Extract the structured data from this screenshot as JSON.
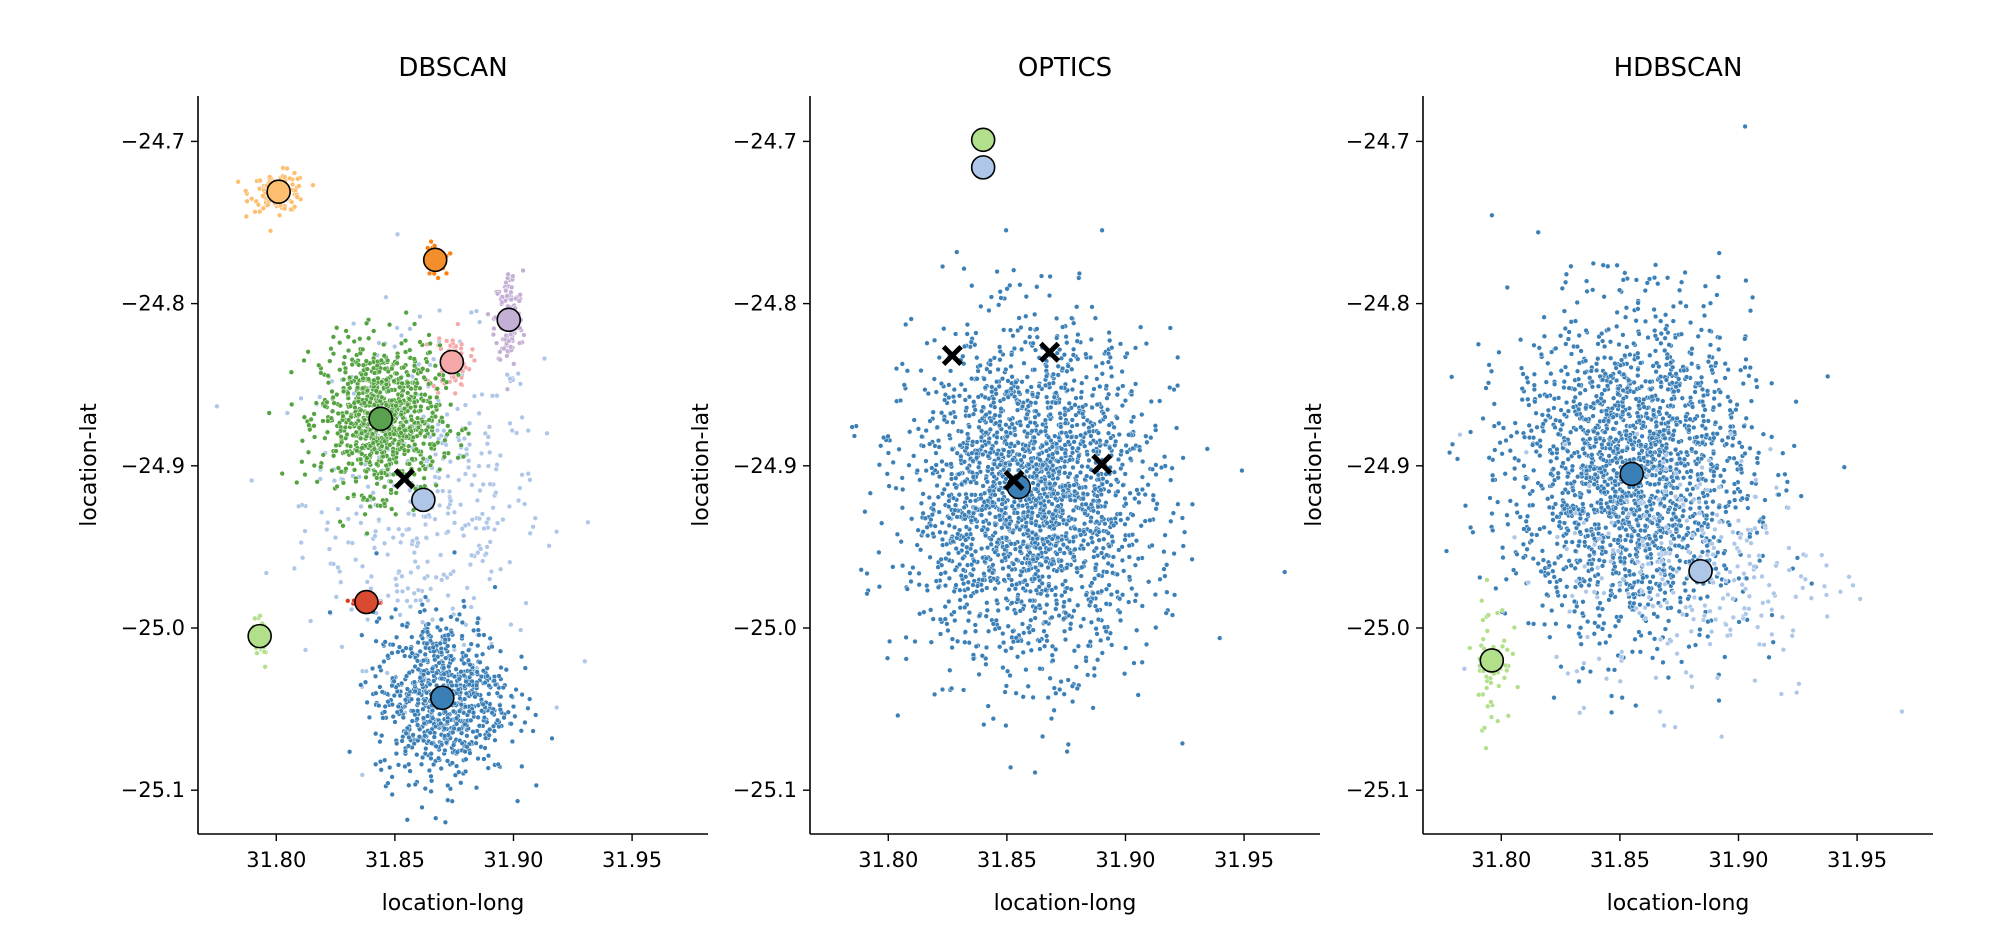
{
  "chart_data": [
    {
      "type": "scatter",
      "title": "DBSCAN",
      "xlabel": "location-long",
      "ylabel": "location-lat",
      "xlim": [
        31.767,
        31.982
      ],
      "ylim": [
        -25.127,
        -24.672
      ],
      "xticks": [
        31.8,
        31.85,
        31.9,
        31.95
      ],
      "xtick_labels": [
        "31.80",
        "31.85",
        "31.90",
        "31.95"
      ],
      "yticks": [
        -24.7,
        -24.8,
        -24.9,
        -25.0,
        -25.1
      ],
      "ytick_labels": [
        "−24.7",
        "−24.8",
        "−24.9",
        "−25.0",
        "−25.1"
      ],
      "grid": false,
      "legend": "none",
      "clusters": [
        {
          "color": "#aec7e8",
          "center": [
            31.862,
            -24.921
          ],
          "spread": [
            0.05,
            0.1
          ],
          "n": 420
        },
        {
          "color": "#fdbf6f",
          "center": [
            31.801,
            -24.731
          ],
          "spread": [
            0.012,
            0.012
          ],
          "n": 110
        },
        {
          "color": "#ff7f0e",
          "center": [
            31.867,
            -24.773
          ],
          "spread": [
            0.004,
            0.01
          ],
          "n": 40
        },
        {
          "color": "#c5b0d5",
          "center": [
            31.898,
            -24.81
          ],
          "spread": [
            0.006,
            0.03
          ],
          "n": 130
        },
        {
          "color": "#f4a9a8",
          "center": [
            31.874,
            -24.836
          ],
          "spread": [
            0.008,
            0.02
          ],
          "n": 60
        },
        {
          "color": "#54a340",
          "center": [
            31.844,
            -24.871
          ],
          "spread": [
            0.025,
            0.045
          ],
          "n": 900
        },
        {
          "color": "#d93a23",
          "center": [
            31.838,
            -24.984
          ],
          "spread": [
            0.006,
            0.003
          ],
          "n": 30
        },
        {
          "color": "#b2df8a",
          "center": [
            31.793,
            -25.005
          ],
          "spread": [
            0.004,
            0.02
          ],
          "n": 30
        },
        {
          "color": "#3b7fb7",
          "center": [
            31.87,
            -25.043
          ],
          "spread": [
            0.028,
            0.05
          ],
          "n": 800
        }
      ],
      "centroids": [
        {
          "x": 31.801,
          "y": -24.731,
          "color": "#fdbf6f"
        },
        {
          "x": 31.867,
          "y": -24.773,
          "color": "#f28e2b"
        },
        {
          "x": 31.898,
          "y": -24.81,
          "color": "#c5b0d5"
        },
        {
          "x": 31.874,
          "y": -24.836,
          "color": "#f4a9a8"
        },
        {
          "x": 31.844,
          "y": -24.871,
          "color": "#59a14f"
        },
        {
          "x": 31.862,
          "y": -24.921,
          "color": "#aec7e8"
        },
        {
          "x": 31.838,
          "y": -24.984,
          "color": "#d94a31"
        },
        {
          "x": 31.793,
          "y": -25.005,
          "color": "#b2df8a"
        },
        {
          "x": 31.87,
          "y": -25.043,
          "color": "#3b7fb7"
        }
      ],
      "crosses": [
        {
          "x": 31.854,
          "y": -24.908
        }
      ]
    },
    {
      "type": "scatter",
      "title": "OPTICS",
      "xlabel": "location-long",
      "ylabel": "location-lat",
      "xlim": [
        31.767,
        31.982
      ],
      "ylim": [
        -25.127,
        -24.672
      ],
      "xticks": [
        31.8,
        31.85,
        31.9,
        31.95
      ],
      "xtick_labels": [
        "31.80",
        "31.85",
        "31.90",
        "31.95"
      ],
      "yticks": [
        -24.7,
        -24.8,
        -24.9,
        -25.0,
        -25.1
      ],
      "ytick_labels": [
        "−24.7",
        "−24.8",
        "−24.9",
        "−25.0",
        "−25.1"
      ],
      "grid": false,
      "legend": "none",
      "clusters": [
        {
          "color": "#3b7fb7",
          "center": [
            31.86,
            -24.92
          ],
          "spread": [
            0.05,
            0.1
          ],
          "n": 2300
        }
      ],
      "centroids": [
        {
          "x": 31.84,
          "y": -24.699,
          "color": "#b2df8a"
        },
        {
          "x": 31.84,
          "y": -24.716,
          "color": "#aec7e8"
        },
        {
          "x": 31.855,
          "y": -24.913,
          "color": "#3b7fb7"
        }
      ],
      "crosses": [
        {
          "x": 31.827,
          "y": -24.832
        },
        {
          "x": 31.868,
          "y": -24.83
        },
        {
          "x": 31.89,
          "y": -24.899
        },
        {
          "x": 31.853,
          "y": -24.909
        }
      ]
    },
    {
      "type": "scatter",
      "title": "HDBSCAN",
      "xlabel": "location-long",
      "ylabel": "location-lat",
      "xlim": [
        31.767,
        31.982
      ],
      "ylim": [
        -25.127,
        -24.672
      ],
      "xticks": [
        31.8,
        31.85,
        31.9,
        31.95
      ],
      "xtick_labels": [
        "31.80",
        "31.85",
        "31.90",
        "31.95"
      ],
      "yticks": [
        -24.7,
        -24.8,
        -24.9,
        -25.0,
        -25.1
      ],
      "ytick_labels": [
        "−24.7",
        "−24.8",
        "−24.9",
        "−25.0",
        "−25.1"
      ],
      "grid": false,
      "legend": "none",
      "clusters": [
        {
          "color": "#3b7fb7",
          "center": [
            31.855,
            -24.905
          ],
          "spread": [
            0.05,
            0.1
          ],
          "n": 2000
        },
        {
          "color": "#aec7e8",
          "center": [
            31.884,
            -24.965
          ],
          "spread": [
            0.06,
            0.08
          ],
          "n": 250
        },
        {
          "color": "#b2df8a",
          "center": [
            31.796,
            -25.02
          ],
          "spread": [
            0.008,
            0.04
          ],
          "n": 60
        }
      ],
      "centroids": [
        {
          "x": 31.855,
          "y": -24.905,
          "color": "#3b7fb7"
        },
        {
          "x": 31.884,
          "y": -24.965,
          "color": "#aec7e8"
        },
        {
          "x": 31.796,
          "y": -25.02,
          "color": "#b2df8a"
        }
      ],
      "crosses": []
    }
  ]
}
